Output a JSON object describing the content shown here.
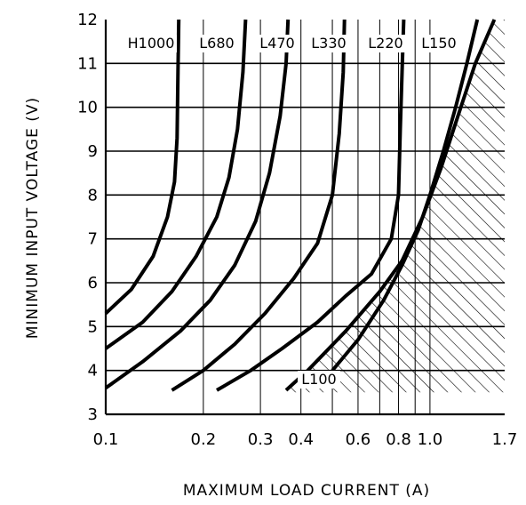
{
  "chart_data": {
    "type": "line",
    "xlabel": "MAXIMUM LOAD CURRENT (A)",
    "ylabel": "MINIMUM INPUT VOLTAGE (V)",
    "x_scale": "log",
    "xlim": [
      0.1,
      1.7
    ],
    "ylim": [
      3,
      12
    ],
    "x_ticks": [
      {
        "value": 0.1,
        "label": "0.1"
      },
      {
        "value": 0.2,
        "label": "0.2"
      },
      {
        "value": 0.3,
        "label": "0.3"
      },
      {
        "value": 0.4,
        "label": "0.4"
      },
      {
        "value": 0.6,
        "label": "0.6"
      },
      {
        "value": 0.8,
        "label": "0.8"
      },
      {
        "value": 1.0,
        "label": "1.0"
      },
      {
        "value": 1.7,
        "label": "1.7"
      }
    ],
    "y_ticks": [
      {
        "value": 3,
        "label": "3"
      },
      {
        "value": 4,
        "label": "4"
      },
      {
        "value": 5,
        "label": "5"
      },
      {
        "value": 6,
        "label": "6"
      },
      {
        "value": 7,
        "label": "7"
      },
      {
        "value": 8,
        "label": "8"
      },
      {
        "value": 9,
        "label": "9"
      },
      {
        "value": 10,
        "label": "10"
      },
      {
        "value": 11,
        "label": "11"
      },
      {
        "value": 12,
        "label": "12"
      }
    ],
    "x_minor_gridlines": [
      0.5,
      0.7,
      0.9
    ],
    "grid": true,
    "series": [
      {
        "name": "H1000",
        "points": [
          [
            0.1,
            5.3
          ],
          [
            0.12,
            5.85
          ],
          [
            0.14,
            6.6
          ],
          [
            0.155,
            7.5
          ],
          [
            0.163,
            8.3
          ],
          [
            0.166,
            9.3
          ],
          [
            0.167,
            10.8
          ],
          [
            0.168,
            12
          ]
        ]
      },
      {
        "name": "L680",
        "points": [
          [
            0.1,
            4.5
          ],
          [
            0.13,
            5.1
          ],
          [
            0.16,
            5.8
          ],
          [
            0.19,
            6.6
          ],
          [
            0.22,
            7.5
          ],
          [
            0.24,
            8.4
          ],
          [
            0.255,
            9.5
          ],
          [
            0.265,
            10.8
          ],
          [
            0.27,
            12
          ]
        ]
      },
      {
        "name": "L470",
        "points": [
          [
            0.1,
            3.6
          ],
          [
            0.13,
            4.2
          ],
          [
            0.17,
            4.9
          ],
          [
            0.21,
            5.6
          ],
          [
            0.25,
            6.4
          ],
          [
            0.29,
            7.4
          ],
          [
            0.32,
            8.5
          ],
          [
            0.345,
            9.8
          ],
          [
            0.36,
            11
          ],
          [
            0.365,
            12
          ]
        ]
      },
      {
        "name": "L330",
        "points": [
          [
            0.16,
            3.55
          ],
          [
            0.2,
            4.0
          ],
          [
            0.25,
            4.6
          ],
          [
            0.31,
            5.3
          ],
          [
            0.38,
            6.1
          ],
          [
            0.45,
            6.9
          ],
          [
            0.5,
            8.0
          ],
          [
            0.525,
            9.4
          ],
          [
            0.54,
            10.8
          ],
          [
            0.545,
            12
          ]
        ]
      },
      {
        "name": "L220",
        "points": [
          [
            0.22,
            3.55
          ],
          [
            0.28,
            4.0
          ],
          [
            0.35,
            4.5
          ],
          [
            0.45,
            5.1
          ],
          [
            0.55,
            5.7
          ],
          [
            0.66,
            6.2
          ],
          [
            0.76,
            7.0
          ],
          [
            0.8,
            8.0
          ],
          [
            0.81,
            9.5
          ],
          [
            0.82,
            10.8
          ],
          [
            0.83,
            12
          ]
        ]
      },
      {
        "name": "L150",
        "points": [
          [
            0.5,
            4.0
          ],
          [
            0.6,
            4.7
          ],
          [
            0.72,
            5.6
          ],
          [
            0.82,
            6.4
          ],
          [
            0.92,
            7.2
          ],
          [
            1.0,
            8.0
          ],
          [
            1.1,
            9.0
          ],
          [
            1.2,
            10.0
          ],
          [
            1.3,
            11.0
          ],
          [
            1.4,
            12
          ]
        ]
      },
      {
        "name": "L100",
        "points": [
          [
            0.36,
            3.55
          ],
          [
            0.42,
            4.0
          ],
          [
            0.55,
            4.9
          ],
          [
            0.7,
            5.8
          ],
          [
            0.82,
            6.5
          ],
          [
            0.95,
            7.5
          ],
          [
            1.08,
            8.6
          ],
          [
            1.22,
            9.8
          ],
          [
            1.38,
            11.0
          ],
          [
            1.58,
            12
          ]
        ]
      }
    ],
    "shaded_region": {
      "style": "hatched",
      "boundary": "L100",
      "y_range": [
        3.5,
        12
      ]
    },
    "colors": {
      "line": "#000000",
      "grid": "#000000",
      "background": "#ffffff"
    }
  }
}
